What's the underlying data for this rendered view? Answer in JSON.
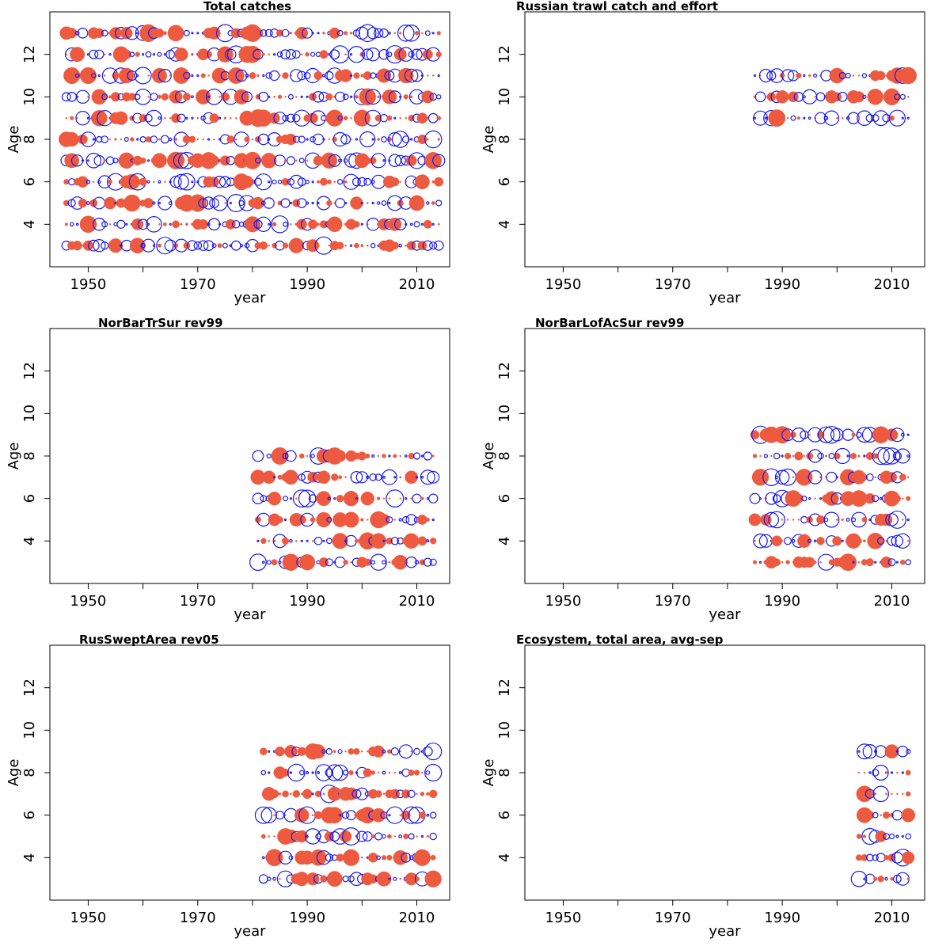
{
  "colors": {
    "positive": "#ee5a3f",
    "negative": "#1a1aee",
    "frame": "#000000"
  },
  "chart_data": [
    {
      "type": "bubble",
      "title": "Total catches",
      "xlabel": "year",
      "ylabel": "Age",
      "xlim": [
        1943,
        2016
      ],
      "ylim": [
        2,
        14
      ],
      "xticks": [
        1950,
        1970,
        1990,
        2010
      ],
      "yticks": [
        4,
        6,
        8,
        10,
        12
      ],
      "years": [
        1946,
        2014
      ],
      "ages": [
        3,
        13
      ],
      "grid": false
    },
    {
      "type": "bubble",
      "title": "Russian trawl catch and effort",
      "xlabel": "year",
      "ylabel": "Age",
      "xlim": [
        1943,
        2016
      ],
      "ylim": [
        2,
        14
      ],
      "xticks": [
        1950,
        1970,
        1990,
        2010
      ],
      "yticks": [
        4,
        6,
        8,
        10,
        12
      ],
      "years": [
        1985,
        2013
      ],
      "ages": [
        9,
        11
      ],
      "grid": false
    },
    {
      "type": "bubble",
      "title": "NorBarTrSur rev99",
      "xlabel": "year",
      "ylabel": "Age",
      "xlim": [
        1943,
        2016
      ],
      "ylim": [
        2,
        14
      ],
      "xticks": [
        1950,
        1970,
        1990,
        2010
      ],
      "yticks": [
        4,
        6,
        8,
        10,
        12
      ],
      "years": [
        1981,
        2013
      ],
      "ages": [
        3,
        8
      ],
      "grid": false
    },
    {
      "type": "bubble",
      "title": "NorBarLofAcSur rev99",
      "xlabel": "year",
      "ylabel": "Age",
      "xlim": [
        1943,
        2016
      ],
      "ylim": [
        2,
        14
      ],
      "xticks": [
        1950,
        1970,
        1990,
        2010
      ],
      "yticks": [
        4,
        6,
        8,
        10,
        12
      ],
      "years": [
        1985,
        2013
      ],
      "ages": [
        3,
        9
      ],
      "grid": false
    },
    {
      "type": "bubble",
      "title": "RusSweptArea rev05",
      "xlabel": "year",
      "ylabel": "Age",
      "xlim": [
        1943,
        2016
      ],
      "ylim": [
        2,
        14
      ],
      "xticks": [
        1950,
        1970,
        1990,
        2010
      ],
      "yticks": [
        4,
        6,
        8,
        10,
        12
      ],
      "years": [
        1982,
        2013
      ],
      "ages": [
        3,
        9
      ],
      "grid": false
    },
    {
      "type": "bubble",
      "title": "Ecosystem, total area, avg-sep",
      "xlabel": "year",
      "ylabel": "Age",
      "xlim": [
        1943,
        2016
      ],
      "ylim": [
        2,
        14
      ],
      "xticks": [
        1950,
        1970,
        1990,
        2010
      ],
      "yticks": [
        4,
        6,
        8,
        10,
        12
      ],
      "years": [
        2004,
        2013
      ],
      "ages": [
        3,
        9
      ],
      "grid": false
    }
  ]
}
